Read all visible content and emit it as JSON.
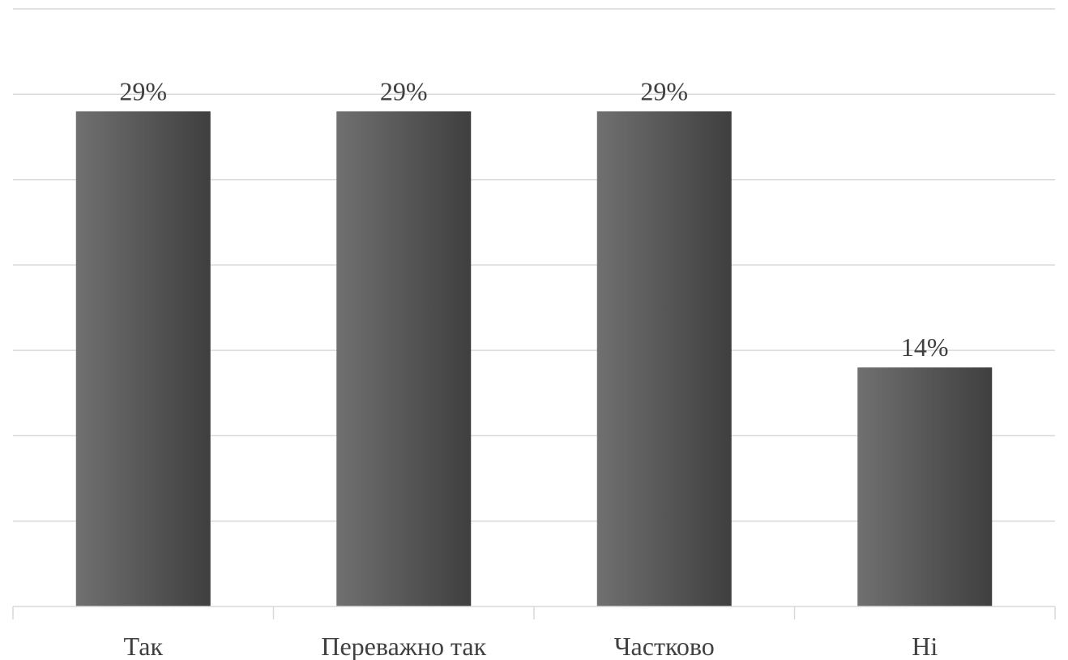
{
  "chart_data": {
    "type": "bar",
    "categories": [
      "Так",
      "Переважно так",
      "Частково",
      "Ні"
    ],
    "values": [
      29,
      29,
      29,
      14
    ],
    "data_labels": [
      "29%",
      "29%",
      "29%",
      "14%"
    ],
    "unit": "%",
    "ylim": [
      0,
      35
    ],
    "grid_step": 5,
    "grid": true,
    "legend": "none",
    "title": "",
    "xlabel": "",
    "ylabel": "",
    "colors": {
      "bar_gradient_start": "#707070",
      "bar_gradient_end": "#3f3f3f",
      "gridline": "#d9d9d9",
      "text": "#404040"
    }
  }
}
